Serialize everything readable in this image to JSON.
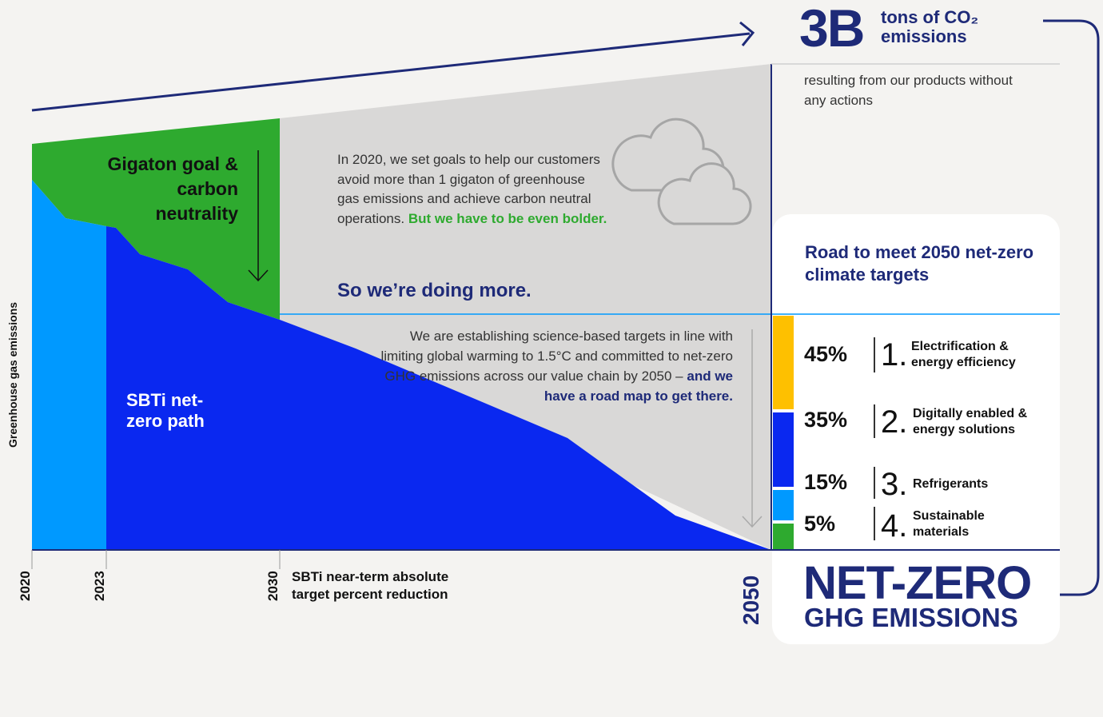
{
  "chart_data": {
    "type": "area",
    "title": "",
    "ylabel": "Greenhouse gas emissions",
    "x_ticks": [
      "2020",
      "2023",
      "2030",
      "2050"
    ],
    "series": [
      {
        "name": "Gigaton goal & carbon neutrality",
        "color": "#2eaa2f"
      },
      {
        "name": "SBTi net-zero path",
        "color": "#0a28f0"
      }
    ]
  },
  "header": {
    "big_number": "3B",
    "unit_line1": "tons of CO₂",
    "unit_line2": "emissions",
    "subtext": "resulting from our products without any actions"
  },
  "labels": {
    "gigaton": "Gigaton goal & carbon neutrality",
    "sbti": "SBTi net-zero path",
    "para1": "In 2020, we set goals to help our customers avoid more than 1 gigaton of greenhouse gas emissions and achieve carbon neutral operations.",
    "para1_bold": "But we have to be even bolder.",
    "more": "So we’re doing more.",
    "para2": "We are establishing science-based targets in line with limiting global warming to 1.5°C and committed to net-zero GHG emissions across our value chain by 2050 –",
    "para2_bold": "and we have a road map to get there.",
    "near_term_line1": "SBTi near-term absolute",
    "near_term_line2": "target percent reduction"
  },
  "roadmap": {
    "title": "Road to meet 2050 net-zero climate targets",
    "items": [
      {
        "pct": "45%",
        "num": "1.",
        "line1": "Electrification &",
        "line2": "energy efficiency",
        "color": "#fec000"
      },
      {
        "pct": "35%",
        "num": "2.",
        "line1": "Digitally enabled &",
        "line2": "energy solutions",
        "color": "#0a28f0"
      },
      {
        "pct": "15%",
        "num": "3.",
        "line1": "Refrigerants",
        "line2": "",
        "color": "#0099ff"
      },
      {
        "pct": "5%",
        "num": "4.",
        "line1": "Sustainable",
        "line2": "materials",
        "color": "#2eaa2f"
      }
    ]
  },
  "footer": {
    "net_zero": "NET-ZERO",
    "ghg": "GHG EMISSIONS"
  }
}
